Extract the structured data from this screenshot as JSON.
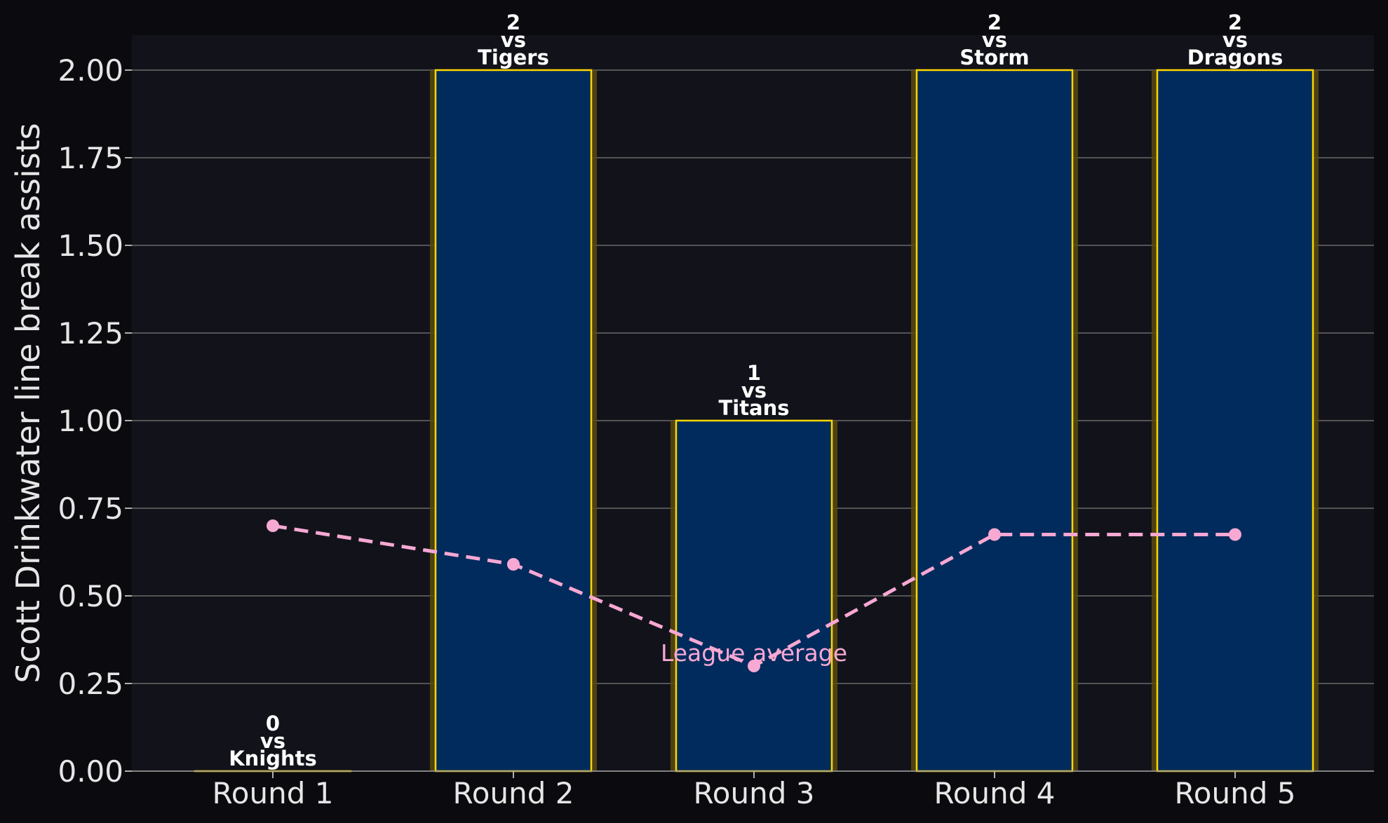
{
  "chart_data": {
    "type": "bar",
    "categories": [
      "Round 1",
      "Round 2",
      "Round 3",
      "Round 4",
      "Round 5"
    ],
    "values": [
      0,
      2,
      1,
      2,
      2
    ],
    "opponents": [
      "Knights",
      "Tigers",
      "Titans",
      "Storm",
      "Dragons"
    ],
    "vs_text": "vs",
    "ylabel": "Scott Drinkwater line break assists",
    "xlabel": "",
    "ylim": [
      0,
      2.1
    ],
    "yticks": [
      "0.00",
      "0.25",
      "0.50",
      "0.75",
      "1.00",
      "1.25",
      "1.50",
      "1.75",
      "2.00"
    ],
    "grid": true,
    "league_average": {
      "label": "League average",
      "values": [
        0.7,
        0.59,
        0.3,
        0.675,
        0.675
      ]
    },
    "colors": {
      "background": "#0b0b0f",
      "plot_background": "#12131a",
      "bar_fill": "#002b5c",
      "bar_edge": "#ffd700",
      "bar_glow": "#5a4a10",
      "league_average_line": "#f7a8d3",
      "grid": "#6b6b6b",
      "text": "#e6e6e6"
    }
  }
}
